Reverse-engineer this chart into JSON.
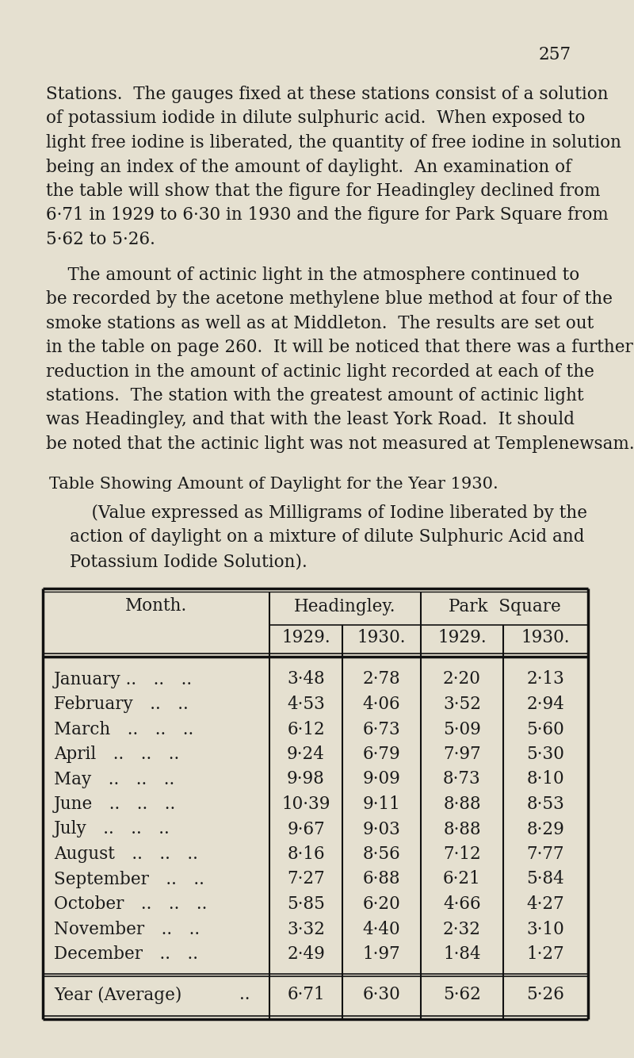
{
  "page_number": "257",
  "bg_color": "#e5e0d0",
  "text_color": "#1a1a1a",
  "para1_lines": [
    "Stations.  The gauges fixed at these stations consist of a solution",
    "of potassium iodide in dilute sulphuric acid.  When exposed to",
    "light free iodine is liberated, the quantity of free iodine in solution",
    "being an index of the amount of daylight.  An examination of",
    "the table will show that the figure for Headingley declined from",
    "6·71 in 1929 to 6·30 in 1930 and the figure for Park Square from",
    "5·62 to 5·26."
  ],
  "para2_lines": [
    "    The amount of actinic light in the atmosphere continued to",
    "be recorded by the acetone methylene blue method at four of the",
    "smoke stations as well as at Middleton.  The results are set out",
    "in the table on page 260.  It will be noticed that there was a further",
    "reduction in the amount of actinic light recorded at each of the",
    "stations.  The station with the greatest amount of actinic light",
    "was Headingley, and that with the least York Road.  It should",
    "be noted that the actinic light was not measured at Templenewsam."
  ],
  "title_line": "Table Showing Amount of Daylight for the Year 1930.",
  "subtitle_lines": [
    "    (Value expressed as Milligrams of Iodine liberated by the",
    "action of daylight on a mixture of dilute Sulphuric Acid and",
    "Potassium Iodide Solution)."
  ],
  "months_col": [
    "January .. .. ..",
    "February .. ..",
    "March .. .. ..",
    "April .. .. ..",
    "May .. .. ..",
    "June .. .. ..",
    "July .. .. ..",
    "August .. .. ..",
    "September .. ..",
    "October .. .. ..",
    "November .. ..",
    "December .. .."
  ],
  "h1929": [
    "3·48",
    "4·53",
    "6·12",
    "9·24",
    "9·98",
    "10·39",
    "9·67",
    "8·16",
    "7·27",
    "5·85",
    "3·32",
    "2·49"
  ],
  "h1930": [
    "2·78",
    "4·06",
    "6·73",
    "6·79",
    "9·09",
    "9·11",
    "9·03",
    "8·56",
    "6·88",
    "6·20",
    "4·40",
    "1·97"
  ],
  "p1929": [
    "2·20",
    "3·52",
    "5·09",
    "7·97",
    "8·73",
    "8·88",
    "8·88",
    "7·12",
    "6·21",
    "4·66",
    "2·32",
    "1·84"
  ],
  "p1930": [
    "2·13",
    "2·94",
    "5·60",
    "5·30",
    "8·10",
    "8·53",
    "8·29",
    "7·77",
    "5·84",
    "4·27",
    "3·10",
    "1·27"
  ],
  "avg_h1929": "6·71",
  "avg_h1930": "6·30",
  "avg_p1929": "5·62",
  "avg_p1930": "5·26"
}
